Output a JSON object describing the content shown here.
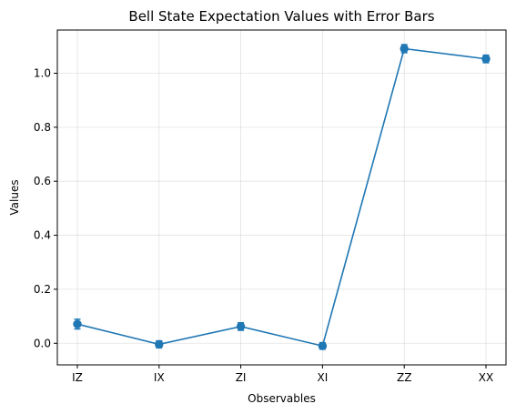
{
  "chart_data": {
    "type": "line",
    "title": "Bell State Expectation Values with Error Bars",
    "xlabel": "Observables",
    "ylabel": "Values",
    "categories": [
      "IZ",
      "IX",
      "ZI",
      "XI",
      "ZZ",
      "XX"
    ],
    "series": [
      {
        "values": [
          0.071,
          -0.004,
          0.062,
          -0.01,
          1.091,
          1.053
        ],
        "errors": [
          0.018,
          0.013,
          0.014,
          0.012,
          0.015,
          0.014
        ],
        "color": "#1f77b4",
        "marker": "circle"
      }
    ],
    "ylim": [
      -0.08,
      1.16
    ],
    "yticks": [
      0.0,
      0.2,
      0.4,
      0.6,
      0.8,
      1.0
    ],
    "ytick_labels": [
      "0.0",
      "0.2",
      "0.4",
      "0.6",
      "0.8",
      "1.0"
    ],
    "grid": true,
    "legend": "none"
  }
}
